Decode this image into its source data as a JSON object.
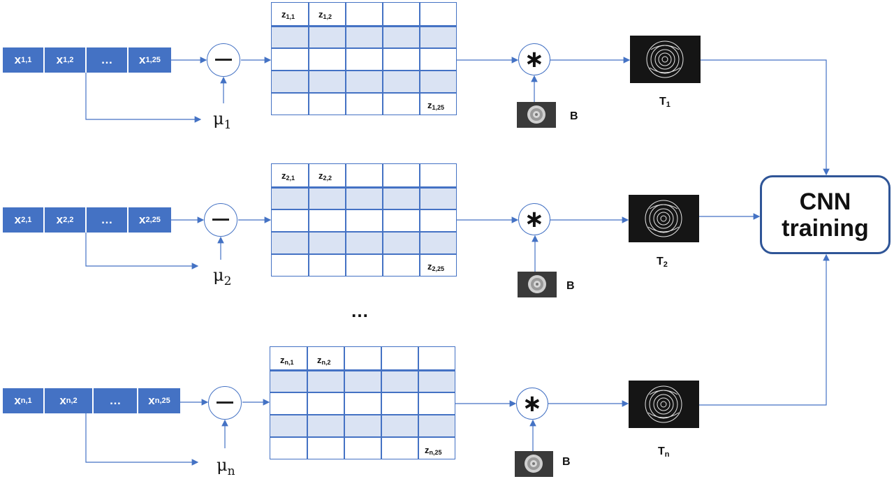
{
  "rows": [
    {
      "x_cells": [
        {
          "base": "x",
          "sub": "1,1"
        },
        {
          "base": "x",
          "sub": "1,2"
        },
        {
          "base": "…",
          "sub": ""
        },
        {
          "base": "x",
          "sub": "1,25"
        }
      ],
      "mu": {
        "base": "μ",
        "sub": "1"
      },
      "z_labels": [
        {
          "base": "z",
          "sub": "1,1"
        },
        {
          "base": "z",
          "sub": "1,2"
        },
        {
          "base": "z",
          "sub": "1,25"
        }
      ],
      "b_label": "B",
      "t_label": {
        "base": "T",
        "sub": "1"
      }
    },
    {
      "x_cells": [
        {
          "base": "x",
          "sub": "2,1"
        },
        {
          "base": "x",
          "sub": "2,2"
        },
        {
          "base": "…",
          "sub": ""
        },
        {
          "base": "x",
          "sub": "2,25"
        }
      ],
      "mu": {
        "base": "μ",
        "sub": "2"
      },
      "z_labels": [
        {
          "base": "z",
          "sub": "2,1"
        },
        {
          "base": "z",
          "sub": "2,2"
        },
        {
          "base": "z",
          "sub": "2,25"
        }
      ],
      "b_label": "B",
      "t_label": {
        "base": "T",
        "sub": "2"
      }
    },
    {
      "x_cells": [
        {
          "base": "x",
          "sub": "n,1"
        },
        {
          "base": "x",
          "sub": "n,2"
        },
        {
          "base": "…",
          "sub": ""
        },
        {
          "base": "x",
          "sub": "n,25"
        }
      ],
      "mu": {
        "base": "μ",
        "sub": "n"
      },
      "z_labels": [
        {
          "base": "z",
          "sub": "n,1"
        },
        {
          "base": "z",
          "sub": "n,2"
        },
        {
          "base": "z",
          "sub": "n,25"
        }
      ],
      "b_label": "B",
      "t_label": {
        "base": "T",
        "sub": "n"
      }
    }
  ],
  "ellipsis": "…",
  "convolution_symbol": "∗",
  "cnn": {
    "line1": "CNN",
    "line2": "training"
  },
  "colors": {
    "blue": "#4472c4",
    "light_blue": "#dae3f3",
    "box_border": "#2f5597",
    "image_bg": "#1a1a1a"
  },
  "icons": {
    "minus": "minus-circle-icon",
    "convolve": "asterisk-icon",
    "rose": "rose-image"
  }
}
